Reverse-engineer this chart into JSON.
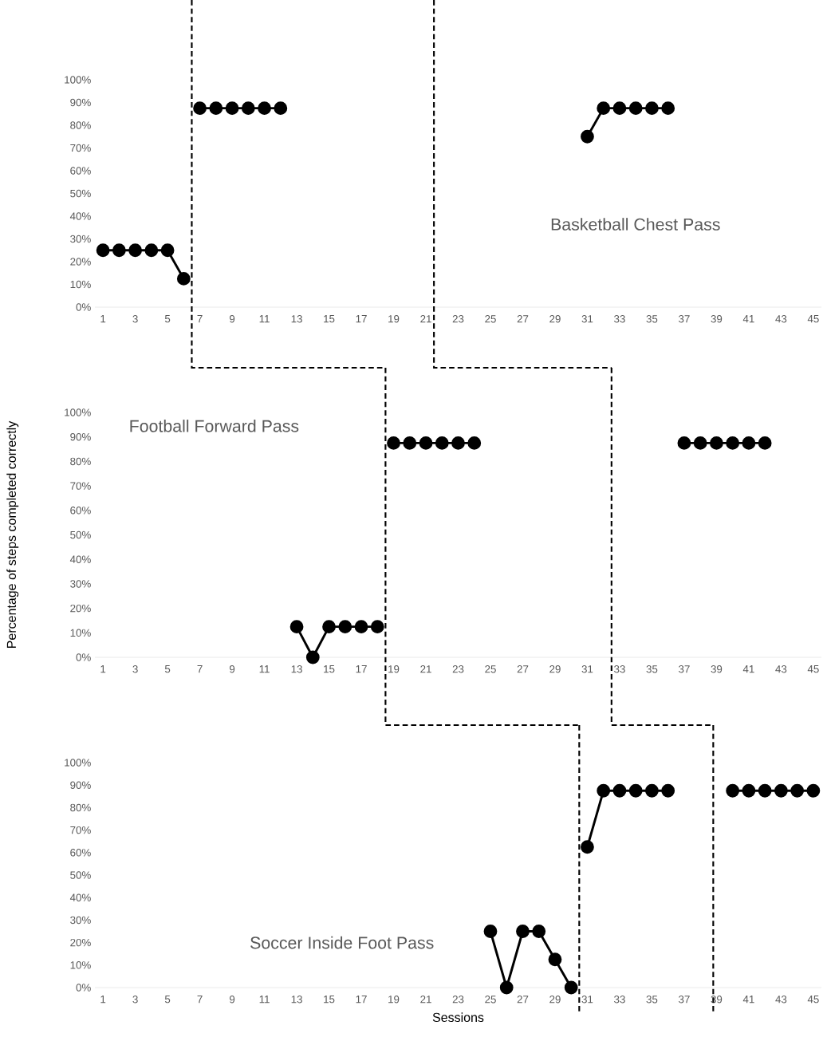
{
  "chart_data": [
    {
      "type": "line",
      "xlim": [
        0.5,
        45.5
      ],
      "xticks": [
        1,
        3,
        5,
        7,
        9,
        11,
        13,
        15,
        17,
        19,
        21,
        23,
        25,
        27,
        29,
        31,
        33,
        35,
        37,
        39,
        41,
        43,
        45
      ],
      "ylim": [
        0,
        100
      ],
      "yticks": [
        {
          "value": 0,
          "label": "0%"
        },
        {
          "value": 10,
          "label": "10%"
        },
        {
          "value": 20,
          "label": "20%"
        },
        {
          "value": 30,
          "label": "30%"
        },
        {
          "value": 40,
          "label": "40%"
        },
        {
          "value": 50,
          "label": "50%"
        },
        {
          "value": 60,
          "label": "60%"
        },
        {
          "value": 70,
          "label": "70%"
        },
        {
          "value": 80,
          "label": "80%"
        },
        {
          "value": 90,
          "label": "90%"
        },
        {
          "value": 100,
          "label": "100%"
        }
      ],
      "marker": "circle",
      "line_style": "solid",
      "series": [
        {
          "color": "#000000",
          "x": [
            1,
            2,
            3,
            4,
            5,
            6
          ],
          "values": [
            25,
            25,
            25,
            25,
            25,
            12.5
          ]
        },
        {
          "color": "#000000",
          "x": [
            7,
            8,
            9,
            10,
            11,
            12
          ],
          "values": [
            87.5,
            87.5,
            87.5,
            87.5,
            87.5,
            87.5
          ]
        },
        {
          "color": "#000000",
          "x": [
            31,
            32,
            33,
            34,
            35,
            36
          ],
          "values": [
            75,
            87.5,
            87.5,
            87.5,
            87.5,
            87.5
          ]
        }
      ],
      "ref_lines": [
        {
          "axis": "x",
          "value": 6.5,
          "color": "#000000",
          "line_style": "dashed"
        },
        {
          "axis": "x",
          "value": 21.5,
          "color": "#000000",
          "line_style": "dashed"
        }
      ],
      "annotations": [
        "Basketball Chest Pass"
      ]
    },
    {
      "type": "line",
      "xlim": [
        0.5,
        45.5
      ],
      "xticks": [
        1,
        3,
        5,
        7,
        9,
        11,
        13,
        15,
        17,
        19,
        21,
        23,
        25,
        27,
        29,
        31,
        33,
        35,
        37,
        39,
        41,
        43,
        45
      ],
      "ylim": [
        0,
        100
      ],
      "yticks": [
        {
          "value": 0,
          "label": "0%"
        },
        {
          "value": 10,
          "label": "10%"
        },
        {
          "value": 20,
          "label": "20%"
        },
        {
          "value": 30,
          "label": "30%"
        },
        {
          "value": 40,
          "label": "40%"
        },
        {
          "value": 50,
          "label": "50%"
        },
        {
          "value": 60,
          "label": "60%"
        },
        {
          "value": 70,
          "label": "70%"
        },
        {
          "value": 80,
          "label": "80%"
        },
        {
          "value": 90,
          "label": "90%"
        },
        {
          "value": 100,
          "label": "100%"
        }
      ],
      "ylabel": "Percentage of steps completed correctly",
      "marker": "circle",
      "line_style": "solid",
      "series": [
        {
          "color": "#000000",
          "x": [
            13,
            14,
            15,
            16,
            17,
            18
          ],
          "values": [
            12.5,
            0,
            12.5,
            12.5,
            12.5,
            12.5
          ]
        },
        {
          "color": "#000000",
          "x": [
            19,
            20,
            21,
            22,
            23,
            24
          ],
          "values": [
            87.5,
            87.5,
            87.5,
            87.5,
            87.5,
            87.5
          ]
        },
        {
          "color": "#000000",
          "x": [
            37,
            38,
            39,
            40,
            41,
            42
          ],
          "values": [
            87.5,
            87.5,
            87.5,
            87.5,
            87.5,
            87.5
          ]
        }
      ],
      "ref_lines": [
        {
          "axis": "x",
          "value": 18.5,
          "color": "#000000",
          "line_style": "dashed"
        },
        {
          "axis": "x",
          "value": 32.5,
          "color": "#000000",
          "line_style": "dashed"
        }
      ],
      "annotations": [
        "Football Forward Pass"
      ]
    },
    {
      "type": "line",
      "xlim": [
        0.5,
        45.5
      ],
      "xticks": [
        1,
        3,
        5,
        7,
        9,
        11,
        13,
        15,
        17,
        19,
        21,
        23,
        25,
        27,
        29,
        31,
        33,
        35,
        37,
        39,
        41,
        43,
        45
      ],
      "ylim": [
        0,
        100
      ],
      "yticks": [
        {
          "value": 0,
          "label": "0%"
        },
        {
          "value": 10,
          "label": "10%"
        },
        {
          "value": 20,
          "label": "20%"
        },
        {
          "value": 30,
          "label": "30%"
        },
        {
          "value": 40,
          "label": "40%"
        },
        {
          "value": 50,
          "label": "50%"
        },
        {
          "value": 60,
          "label": "60%"
        },
        {
          "value": 70,
          "label": "70%"
        },
        {
          "value": 80,
          "label": "80%"
        },
        {
          "value": 90,
          "label": "90%"
        },
        {
          "value": 100,
          "label": "100%"
        }
      ],
      "xlabel": "Sessions",
      "marker": "circle",
      "line_style": "solid",
      "series": [
        {
          "color": "#000000",
          "x": [
            25,
            26,
            27,
            28,
            29,
            30
          ],
          "values": [
            25,
            0,
            25,
            25,
            12.5,
            0
          ]
        },
        {
          "color": "#000000",
          "x": [
            31,
            32,
            33,
            34,
            35,
            36
          ],
          "values": [
            62.5,
            87.5,
            87.5,
            87.5,
            87.5,
            87.5
          ]
        },
        {
          "color": "#000000",
          "x": [
            40,
            41,
            42,
            43,
            44,
            45
          ],
          "values": [
            87.5,
            87.5,
            87.5,
            87.5,
            87.5,
            87.5
          ]
        }
      ],
      "ref_lines": [
        {
          "axis": "x",
          "value": 30.5,
          "color": "#000000",
          "line_style": "dashed"
        },
        {
          "axis": "x",
          "value": 38.8,
          "color": "#000000",
          "line_style": "dashed"
        }
      ],
      "annotations": [
        "Soccer Inside Foot Pass"
      ]
    }
  ]
}
